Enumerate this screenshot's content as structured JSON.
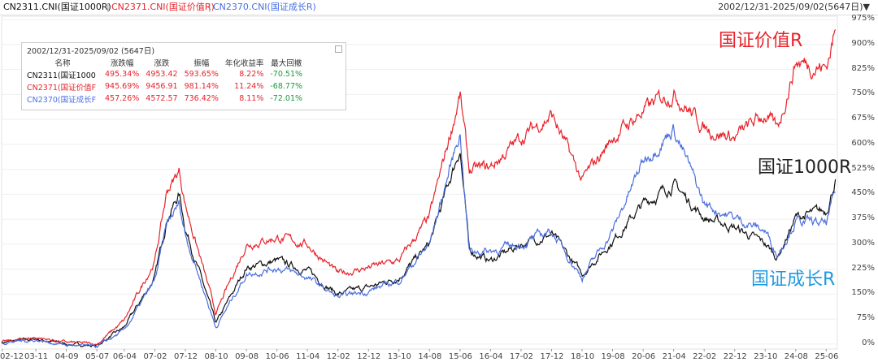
{
  "header": {
    "legend": [
      {
        "text": "CN2311.CNI(国证1000R)",
        "color": "#111111"
      },
      {
        "text": "CN2371.CNI(国证价值R)",
        "color": "#e8222a"
      },
      {
        "text": "CN2370.CNI(国证成长R)",
        "color": "#4a6fe0"
      }
    ],
    "separator": "|",
    "range": "2002/12/31-2025/09/02(5647日)▼"
  },
  "stats": {
    "title": "2002/12/31-2025/09/02 (5647日)",
    "headers": [
      "名称",
      "涨跌幅",
      "涨跌",
      "振幅",
      "年化收益率",
      "最大回撤"
    ],
    "rows": [
      {
        "name": "CN2311(国证1000",
        "color": "#111111",
        "cells": [
          "495.34%",
          "4953.42",
          "593.65%",
          "8.22%",
          "-70.51%"
        ]
      },
      {
        "name": "CN2371(国证价值F",
        "color": "#e8222a",
        "cells": [
          "945.69%",
          "9456.91",
          "981.14%",
          "11.24%",
          "-68.77%"
        ]
      },
      {
        "name": "CN2370(国证成长F",
        "color": "#4a6fe0",
        "cells": [
          "457.26%",
          "4572.57",
          "736.42%",
          "8.11%",
          "-72.01%"
        ]
      }
    ],
    "value_color": "#e8222a",
    "drawdown_color": "#1a9a3a"
  },
  "labels": {
    "value": "国证价值R",
    "index": "国证1000R",
    "growth": "国证成长R"
  },
  "chart_data": {
    "type": "line",
    "x_ticks": [
      "02-12",
      "03-11",
      "04-09",
      "05-07",
      "06-04",
      "07-02",
      "07-12",
      "08-10",
      "09-08",
      "10-06",
      "11-04",
      "12-02",
      "12-12",
      "13-10",
      "14-08",
      "15-06",
      "16-04",
      "17-02",
      "17-12",
      "18-10",
      "19-08",
      "20-06",
      "21-04",
      "22-02",
      "22-12",
      "23-10",
      "24-08",
      "25-06"
    ],
    "y_ticks": [
      "975%",
      "900%",
      "825%",
      "750%",
      "675%",
      "600%",
      "525%",
      "450%",
      "375%",
      "300%",
      "225%",
      "150%",
      "75%",
      "0%"
    ],
    "ylim": [
      -15,
      985
    ],
    "series": [
      {
        "name": "CN2311.CNI(国证1000R)",
        "color": "#111111",
        "x": [
          "2002-12",
          "2003-11",
          "2004-09",
          "2005-07",
          "2006-04",
          "2007-02",
          "2007-06",
          "2007-10",
          "2007-12",
          "2008-10",
          "2009-08",
          "2010-06",
          "2011-04",
          "2012-02",
          "2012-12",
          "2013-10",
          "2014-08",
          "2015-06",
          "2015-09",
          "2016-04",
          "2017-02",
          "2017-12",
          "2018-10",
          "2019-08",
          "2020-06",
          "2021-04",
          "2022-02",
          "2022-12",
          "2023-10",
          "2024-02",
          "2024-08",
          "2025-06",
          "2025-09"
        ],
        "values": [
          5,
          15,
          0,
          -5,
          50,
          200,
          380,
          450,
          350,
          60,
          230,
          250,
          220,
          150,
          170,
          200,
          300,
          590,
          280,
          250,
          300,
          330,
          210,
          310,
          420,
          480,
          380,
          350,
          300,
          260,
          380,
          400,
          495
        ]
      },
      {
        "name": "CN2371.CNI(国证价值R)",
        "color": "#e8222a",
        "x": [
          "2002-12",
          "2003-11",
          "2004-09",
          "2005-07",
          "2006-04",
          "2007-02",
          "2007-06",
          "2007-10",
          "2007-12",
          "2008-10",
          "2009-08",
          "2010-06",
          "2011-04",
          "2012-02",
          "2012-12",
          "2013-10",
          "2014-08",
          "2015-06",
          "2015-09",
          "2016-04",
          "2017-02",
          "2017-12",
          "2018-10",
          "2019-08",
          "2020-06",
          "2021-04",
          "2022-02",
          "2022-12",
          "2023-10",
          "2024-02",
          "2024-08",
          "2025-06",
          "2025-09"
        ],
        "values": [
          5,
          20,
          5,
          0,
          70,
          250,
          460,
          520,
          420,
          90,
          300,
          320,
          300,
          210,
          230,
          250,
          380,
          750,
          520,
          530,
          620,
          690,
          490,
          620,
          700,
          760,
          650,
          620,
          690,
          640,
          850,
          830,
          945
        ]
      },
      {
        "name": "CN2370.CNI(国证成长R)",
        "color": "#4a6fe0",
        "x": [
          "2002-12",
          "2003-11",
          "2004-09",
          "2005-07",
          "2006-04",
          "2007-02",
          "2007-06",
          "2007-10",
          "2007-12",
          "2008-10",
          "2009-08",
          "2010-06",
          "2011-04",
          "2012-02",
          "2012-12",
          "2013-10",
          "2014-08",
          "2015-06",
          "2015-09",
          "2016-04",
          "2017-02",
          "2017-12",
          "2018-10",
          "2019-08",
          "2020-06",
          "2021-04",
          "2022-02",
          "2022-12",
          "2023-10",
          "2024-02",
          "2024-08",
          "2025-06",
          "2025-09"
        ],
        "values": [
          5,
          12,
          -3,
          -8,
          40,
          190,
          360,
          420,
          330,
          50,
          210,
          230,
          200,
          140,
          160,
          190,
          300,
          640,
          280,
          280,
          300,
          340,
          200,
          340,
          550,
          650,
          420,
          380,
          340,
          270,
          370,
          360,
          457
        ]
      }
    ]
  }
}
